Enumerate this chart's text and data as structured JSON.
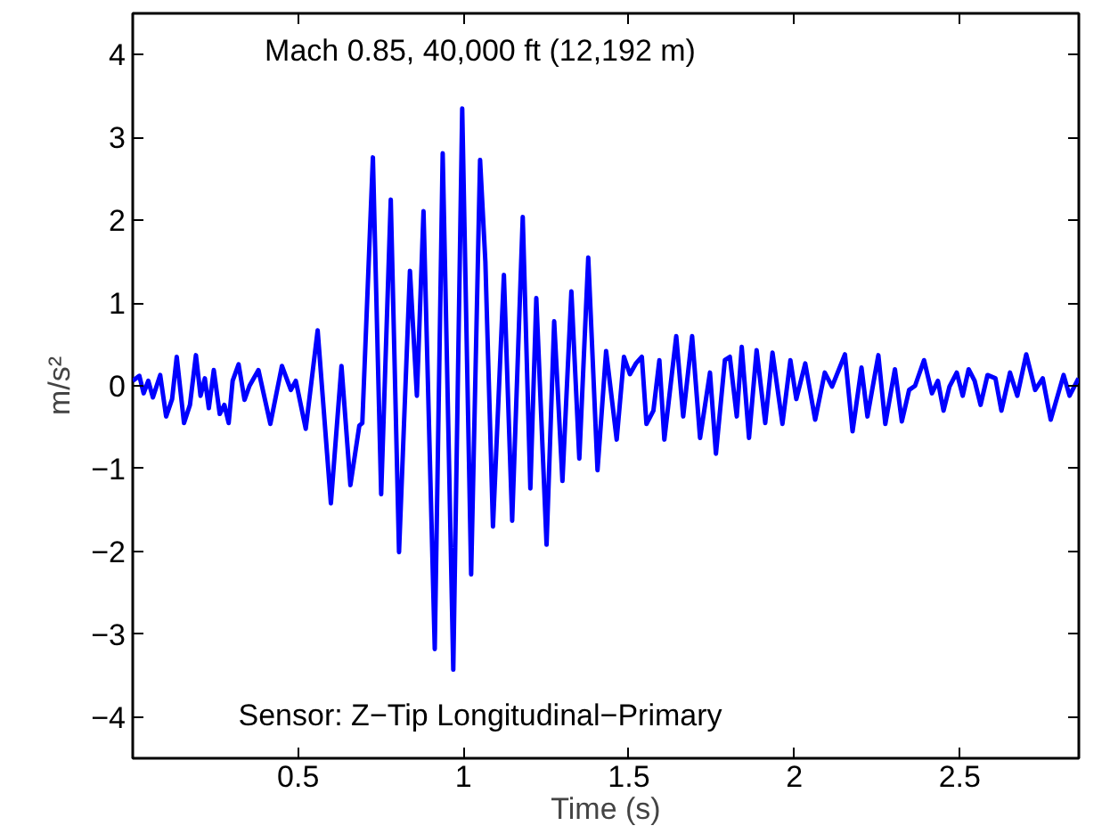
{
  "chart_data": {
    "type": "line",
    "xlabel": "Time (s)",
    "ylabel": "m/s²",
    "annotations": [
      "Mach 0.85, 40,000 ft (12,192 m)",
      "Sensor: Z−Tip Longitudinal−Primary"
    ],
    "xlim": [
      0,
      2.86
    ],
    "ylim": [
      -4.5,
      4.5
    ],
    "xticks": [
      0.5,
      1,
      1.5,
      2,
      2.5
    ],
    "yticks": [
      -4,
      -3,
      -2,
      -1,
      0,
      1,
      2,
      3,
      4
    ],
    "grid": false,
    "marker": "none",
    "line_style": "solid",
    "series": [
      {
        "color": "#0000ff",
        "x": [
          0.0,
          0.02,
          0.033,
          0.047,
          0.061,
          0.083,
          0.101,
          0.119,
          0.133,
          0.155,
          0.173,
          0.191,
          0.205,
          0.218,
          0.23,
          0.245,
          0.263,
          0.277,
          0.29,
          0.302,
          0.32,
          0.338,
          0.353,
          0.38,
          0.416,
          0.451,
          0.478,
          0.493,
          0.523,
          0.559,
          0.599,
          0.631,
          0.658,
          0.685,
          0.694,
          0.726,
          0.751,
          0.78,
          0.805,
          0.838,
          0.859,
          0.879,
          0.913,
          0.937,
          0.969,
          0.996,
          1.023,
          1.05,
          1.066,
          1.089,
          1.122,
          1.147,
          1.179,
          1.202,
          1.22,
          1.251,
          1.274,
          1.299,
          1.326,
          1.35,
          1.377,
          1.405,
          1.431,
          1.463,
          1.485,
          1.503,
          1.521,
          1.539,
          1.553,
          1.574,
          1.592,
          1.607,
          1.643,
          1.664,
          1.691,
          1.715,
          1.745,
          1.763,
          1.79,
          1.805,
          1.826,
          1.841,
          1.863,
          1.886,
          1.912,
          1.934,
          1.964,
          1.988,
          2.006,
          2.033,
          2.063,
          2.092,
          2.114,
          2.153,
          2.176,
          2.203,
          2.221,
          2.254,
          2.275,
          2.304,
          2.325,
          2.347,
          2.365,
          2.392,
          2.416,
          2.434,
          2.451,
          2.469,
          2.491,
          2.509,
          2.527,
          2.545,
          2.563,
          2.584,
          2.608,
          2.626,
          2.652,
          2.674,
          2.701,
          2.728,
          2.751,
          2.775,
          2.796,
          2.814,
          2.832,
          2.859
        ],
        "values": [
          0.06,
          0.12,
          -0.09,
          0.06,
          -0.14,
          0.13,
          -0.37,
          -0.16,
          0.35,
          -0.45,
          -0.23,
          0.37,
          -0.12,
          0.09,
          -0.27,
          0.19,
          -0.34,
          -0.23,
          -0.45,
          0.06,
          0.26,
          -0.17,
          0,
          0.19,
          -0.46,
          0.24,
          -0.05,
          0.06,
          -0.52,
          0.67,
          -1.42,
          0.24,
          -1.2,
          -0.48,
          -0.45,
          2.76,
          -1.31,
          2.25,
          -2.01,
          1.39,
          -0.12,
          2.11,
          -3.18,
          2.81,
          -3.43,
          3.35,
          -2.28,
          2.73,
          1.5,
          -1.7,
          1.34,
          -1.63,
          2.04,
          -1.24,
          1.06,
          -1.92,
          0.78,
          -1.15,
          1.14,
          -0.88,
          1.55,
          -1.02,
          0.42,
          -0.65,
          0.35,
          0.14,
          0.27,
          0.35,
          -0.46,
          -0.3,
          0.31,
          -0.65,
          0.6,
          -0.37,
          0.6,
          -0.63,
          0.16,
          -0.82,
          0.31,
          0.35,
          -0.37,
          0.47,
          -0.63,
          0.43,
          -0.45,
          0.4,
          -0.46,
          0.31,
          -0.16,
          0.27,
          -0.41,
          0.16,
          -0.01,
          0.38,
          -0.55,
          0.22,
          -0.37,
          0.37,
          -0.46,
          0.2,
          -0.43,
          -0.05,
          0,
          0.31,
          -0.09,
          0.06,
          -0.3,
          -0.01,
          0.16,
          -0.12,
          0.2,
          0.06,
          -0.23,
          0.13,
          0.09,
          -0.3,
          0.16,
          -0.12,
          0.38,
          -0.05,
          0.09,
          -0.41,
          -0.12,
          0.13,
          -0.12,
          0.09
        ]
      }
    ]
  }
}
